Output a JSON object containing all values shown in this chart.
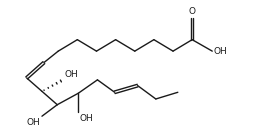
{
  "bg_color": "#ffffff",
  "line_color": "#1a1a1a",
  "lw": 1.0,
  "fs": 6.5,
  "xlim": [
    0,
    10.36
  ],
  "ylim": [
    0,
    5.2
  ],
  "figsize": [
    2.59,
    1.3
  ],
  "dpi": 100
}
